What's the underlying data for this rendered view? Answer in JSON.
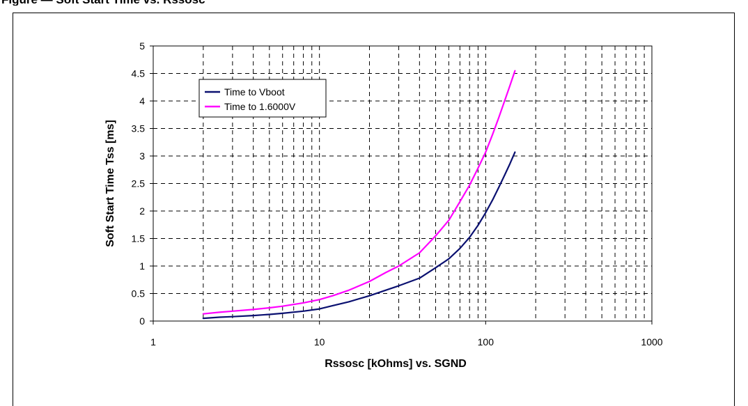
{
  "figure_title": "Figure — Soft Start Time vs. Rssosc",
  "chart_data": {
    "type": "line",
    "xlabel": "Rssosc [kOhms] vs. SGND",
    "ylabel": "Soft Start Time Tss [ms]",
    "xscale": "log",
    "xlim": [
      1,
      1000
    ],
    "ylim": [
      0,
      5
    ],
    "x_ticks": [
      "1",
      "10",
      "100",
      "1000"
    ],
    "y_ticks": [
      "0",
      "0.5",
      "1",
      "1.5",
      "2",
      "2.5",
      "3",
      "3.5",
      "4",
      "4.5",
      "5"
    ],
    "grid": true,
    "legend_position": "top-left",
    "series": [
      {
        "name": "Time to Vboot",
        "color": "#0a1070",
        "x": [
          2,
          2.5,
          3,
          4,
          5,
          6,
          8,
          10,
          12,
          15,
          20,
          25,
          30,
          40,
          50,
          60,
          70,
          80,
          90,
          100,
          110,
          120,
          130,
          140,
          150
        ],
        "y": [
          0.05,
          0.07,
          0.08,
          0.1,
          0.12,
          0.14,
          0.18,
          0.22,
          0.28,
          0.35,
          0.46,
          0.56,
          0.64,
          0.78,
          0.97,
          1.13,
          1.32,
          1.52,
          1.74,
          1.97,
          2.2,
          2.43,
          2.65,
          2.86,
          3.07
        ]
      },
      {
        "name": "Time to 1.6000V",
        "color": "#ff00ff",
        "x": [
          2,
          2.5,
          3,
          4,
          5,
          6,
          8,
          10,
          12,
          15,
          20,
          25,
          30,
          40,
          50,
          60,
          70,
          80,
          90,
          100,
          110,
          120,
          130,
          140,
          150
        ],
        "y": [
          0.13,
          0.16,
          0.18,
          0.21,
          0.24,
          0.27,
          0.33,
          0.39,
          0.46,
          0.56,
          0.72,
          0.88,
          1.0,
          1.24,
          1.55,
          1.83,
          2.17,
          2.47,
          2.78,
          3.07,
          3.39,
          3.7,
          4.0,
          4.28,
          4.55
        ]
      }
    ]
  }
}
